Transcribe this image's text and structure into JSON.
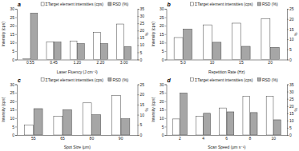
{
  "chart_data": [
    {
      "type": "bar",
      "title": "a",
      "x_label": "Laser Fluency (J cm⁻²)",
      "y_label": "Intensity (cps)",
      "y2_label": "%",
      "categories": [
        "0.55",
        "0.45",
        "1.20",
        "2.20",
        "3.00"
      ],
      "series": [
        {
          "name": "ΣTarget element intensities (cps)",
          "color": "#ffffff",
          "values": [
            0.5,
            10.5,
            11,
            16,
            21
          ]
        },
        {
          "name": "RSD (%)",
          "color": "#a6a6a6",
          "values": [
            32,
            12,
            11,
            11,
            9
          ],
          "axis": "y2"
        }
      ],
      "ylim": [
        0,
        30
      ],
      "yticks": [
        0,
        5,
        10,
        15,
        20,
        25,
        30
      ],
      "y2lim": [
        0,
        35
      ],
      "y2ticks": [
        0,
        5,
        10,
        15,
        20,
        25,
        30,
        35
      ],
      "legend": "top"
    },
    {
      "type": "bar",
      "title": "b",
      "x_label": "Repetition Rate (Hz)",
      "y_label": "Intensity (cps)",
      "y2_label": "%",
      "categories": [
        "5.0",
        "10",
        "15",
        "20"
      ],
      "series": [
        {
          "name": "ΣTarget element intensities (cps)",
          "color": "#ffffff",
          "values": [
            13,
            20.5,
            21.5,
            24
          ]
        },
        {
          "name": "RSD (%)",
          "color": "#a6a6a6",
          "values": [
            15,
            8.5,
            6.5,
            6
          ],
          "axis": "y2"
        }
      ],
      "ylim": [
        0,
        30
      ],
      "yticks": [
        0,
        5,
        10,
        15,
        20,
        25,
        30
      ],
      "y2lim": [
        0,
        25
      ],
      "y2ticks": [
        0,
        5,
        10,
        15,
        20,
        25
      ],
      "legend": "top"
    },
    {
      "type": "bar",
      "title": "c",
      "x_label": "Spot Size (μm)",
      "y_label": "Intensity (cps)",
      "y2_label": "%",
      "categories": [
        "55",
        "65",
        "80",
        "90"
      ],
      "series": [
        {
          "name": "ΣTarget element intensities (cps)",
          "color": "#ffffff",
          "values": [
            6,
            11,
            19,
            23.5
          ]
        },
        {
          "name": "RSD (%)",
          "color": "#a6a6a6",
          "values": [
            13,
            12.5,
            10,
            8
          ],
          "axis": "y2"
        }
      ],
      "ylim": [
        0,
        30
      ],
      "yticks": [
        0,
        5,
        10,
        15,
        20,
        25,
        30
      ],
      "y2lim": [
        0,
        25
      ],
      "y2ticks": [
        0,
        5,
        10,
        15,
        20,
        25
      ],
      "legend": "top"
    },
    {
      "type": "bar",
      "title": "d",
      "x_label": "Scan Speed (μm s⁻¹)",
      "y_label": "Intensity (cps)",
      "y2_label": "%",
      "categories": [
        "2",
        "4",
        "6",
        "8",
        "10"
      ],
      "series": [
        {
          "name": "ΣTarget element intensities (cps)",
          "color": "#ffffff",
          "values": [
            9.5,
            11,
            16,
            23,
            23
          ]
        },
        {
          "name": "RSD (%)",
          "color": "#a6a6a6",
          "values": [
            29,
            15,
            16,
            15.5,
            10.5
          ],
          "axis": "y2"
        }
      ],
      "ylim": [
        0,
        30
      ],
      "yticks": [
        0,
        5,
        10,
        15,
        20,
        25,
        30
      ],
      "y2lim": [
        0,
        35
      ],
      "y2ticks": [
        0,
        5,
        10,
        15,
        20,
        25,
        30,
        35
      ],
      "legend": "top"
    }
  ]
}
